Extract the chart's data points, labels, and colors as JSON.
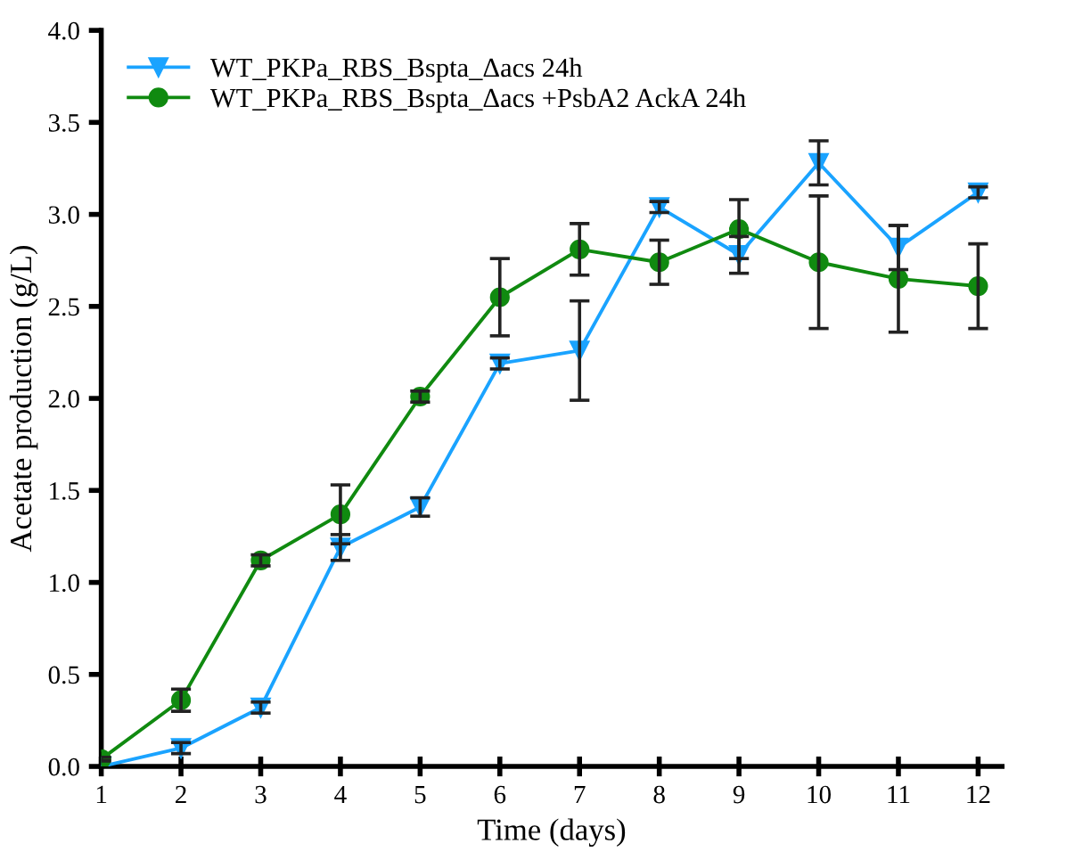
{
  "chart_data": {
    "type": "line",
    "xlabel": "Time (days)",
    "ylabel": "Acetate production (g/L)",
    "x": [
      1,
      2,
      3,
      4,
      5,
      6,
      7,
      8,
      9,
      10,
      11,
      12
    ],
    "series": [
      {
        "name": "WT_PKPa_RBS_Bspta_Δacs 24h",
        "color": "#1aa3ff",
        "marker": "triangle",
        "values": [
          0.0,
          0.1,
          0.32,
          1.19,
          1.41,
          2.19,
          2.26,
          3.04,
          2.78,
          3.28,
          2.82,
          3.12
        ],
        "errors": [
          null,
          0.03,
          0.03,
          0.07,
          0.05,
          0.03,
          0.27,
          0.03,
          0.1,
          0.12,
          0.12,
          0.03
        ]
      },
      {
        "name": "WT_PKPa_RBS_Bspta_Δacs +PsbA2 AckA 24h",
        "color": "#108a10",
        "marker": "circle",
        "values": [
          0.04,
          0.36,
          1.12,
          1.37,
          2.01,
          2.55,
          2.81,
          2.74,
          2.92,
          2.74,
          2.65,
          2.61
        ],
        "errors": [
          0.01,
          0.06,
          0.03,
          0.16,
          0.03,
          0.21,
          0.14,
          0.12,
          0.16,
          0.36,
          0.29,
          0.23
        ]
      }
    ],
    "xlim": [
      1,
      12.3
    ],
    "xticks": [
      1,
      2,
      3,
      4,
      5,
      6,
      7,
      8,
      9,
      10,
      11,
      12
    ],
    "ylim": [
      0,
      4.0
    ],
    "yticks": [
      {
        "value": 0,
        "label": "0.0"
      },
      {
        "value": 0.5,
        "label": "0.5"
      },
      {
        "value": 1,
        "label": "1.0"
      },
      {
        "value": 1.5,
        "label": "1.5"
      },
      {
        "value": 2,
        "label": "2.0"
      },
      {
        "value": 2.5,
        "label": "2.5"
      },
      {
        "value": 3,
        "label": "3.0"
      },
      {
        "value": 3.5,
        "label": "3.5"
      },
      {
        "value": 4,
        "label": "4.0"
      }
    ],
    "grid": false,
    "legend": "top left"
  }
}
